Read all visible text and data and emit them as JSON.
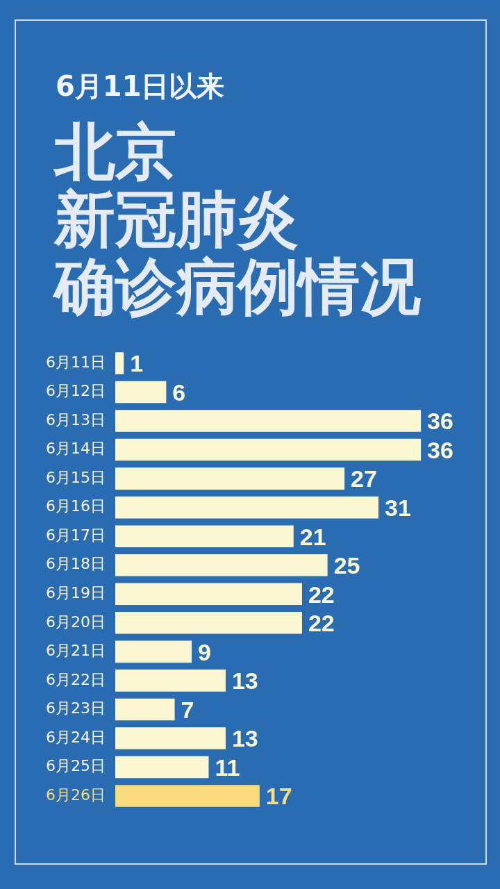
{
  "chart_data": {
    "type": "bar",
    "orientation": "horizontal",
    "subtitle": "6月11日以来",
    "title": "北京新冠肺炎确诊病例情况",
    "categories": [
      "6月11日",
      "6月12日",
      "6月13日",
      "6月14日",
      "6月15日",
      "6月16日",
      "6月17日",
      "6月18日",
      "6月19日",
      "6月20日",
      "6月21日",
      "6月22日",
      "6月23日",
      "6月24日",
      "6月25日",
      "6月26日"
    ],
    "values": [
      1,
      6,
      36,
      36,
      27,
      31,
      21,
      25,
      22,
      22,
      9,
      13,
      7,
      13,
      11,
      17
    ],
    "colors": [
      "#fcf7d3",
      "#fcf7d3",
      "#fcf7d3",
      "#fcf7d3",
      "#fcf7d3",
      "#fcf7d3",
      "#fcf7d3",
      "#fcf7d3",
      "#fcf7d3",
      "#fcf7d3",
      "#fcf7d3",
      "#fcf7d3",
      "#fcf7d3",
      "#fcf7d3",
      "#fcf7d3",
      "#f9dd7c"
    ],
    "data_labels": true
  }
}
